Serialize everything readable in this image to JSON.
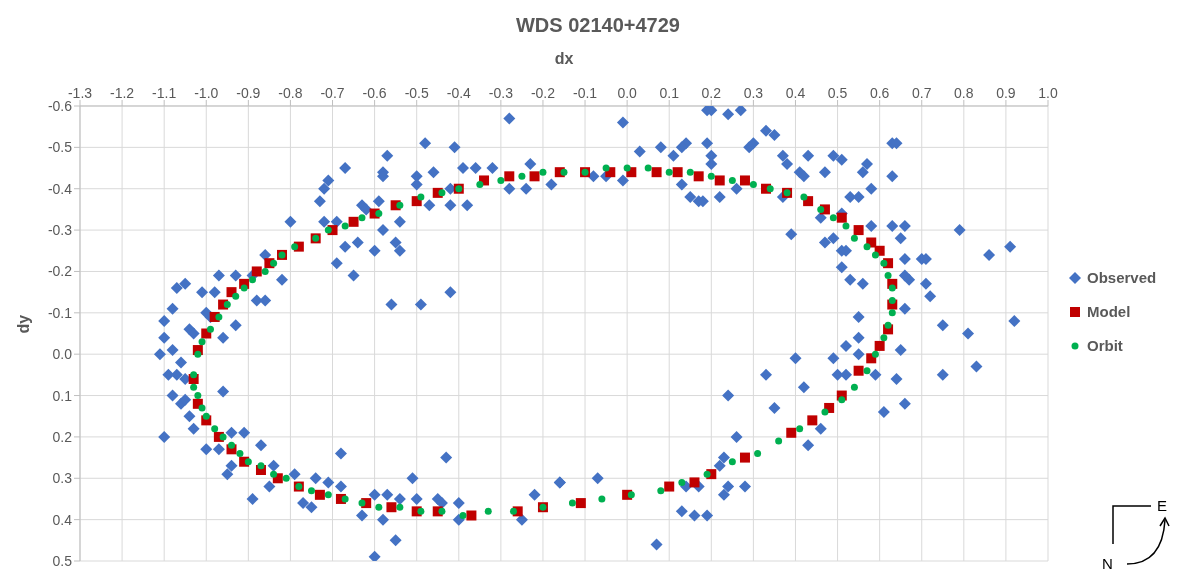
{
  "chart_data": {
    "type": "scatter",
    "title": "WDS 02140+4729",
    "xlabel": "dx",
    "ylabel": "dy",
    "xlim": [
      -1.3,
      1.0
    ],
    "ylim": [
      0.5,
      -0.6
    ],
    "xticks": [
      -1.3,
      -1.2,
      -1.1,
      {
        "value": -1,
        "label": "-1.0"
      },
      -0.9,
      -0.8,
      -0.7,
      -0.6,
      -0.5,
      -0.4,
      -0.3,
      -0.2,
      -0.1,
      {
        "value": 0,
        "label": "0.0"
      },
      0.1,
      0.2,
      0.3,
      0.4,
      0.5,
      0.6,
      0.7,
      0.8,
      0.9,
      {
        "value": 1,
        "label": "1.0"
      }
    ],
    "yticks": [
      -0.6,
      -0.5,
      -0.4,
      -0.3,
      -0.2,
      -0.1,
      {
        "value": 0,
        "label": "0.0"
      },
      0.1,
      0.2,
      0.3,
      0.4,
      0.5
    ],
    "grid": true,
    "legend": "right",
    "annotations": [
      "N",
      "E"
    ],
    "series": [
      {
        "name": "Observed",
        "color": "#4472c4",
        "marker": "diamond",
        "x": [
          -0.28,
          -0.48,
          -0.41,
          -0.57,
          -0.67,
          -0.58,
          -0.58,
          -0.71,
          -0.72,
          -0.73,
          -0.5,
          -0.5,
          -0.46,
          -0.39,
          -0.36,
          -0.32,
          -0.28,
          -0.24,
          -0.18,
          -0.23,
          -0.42,
          -0.42,
          -0.38,
          -0.47,
          -0.63,
          -0.62,
          -0.59,
          -0.54,
          -0.58,
          -0.8,
          -0.72,
          -0.69,
          -0.64,
          -0.67,
          -0.6,
          -0.55,
          -0.54,
          -0.69,
          -0.65,
          -0.86,
          -0.82,
          -0.97,
          -0.93,
          -0.89,
          -1.05,
          -1.07,
          -1.08,
          -1.01,
          -0.98,
          -0.88,
          -0.86,
          -0.56,
          -0.49,
          -0.42,
          -1.1,
          -1.0,
          -0.99,
          -0.93,
          -1.1,
          -1.04,
          -1.03,
          -0.96,
          -1.11,
          -1.08,
          -1.06,
          -1.07,
          -1.09,
          -1.05,
          -1.08,
          -1.06,
          -1.05,
          -0.96,
          -1.04,
          -1.03,
          -1.1,
          -1.0,
          -0.97,
          -0.94,
          -0.91,
          -0.87,
          -0.95,
          -0.94,
          -0.84,
          -0.89,
          -0.85,
          -0.79,
          -0.74,
          -0.77,
          -0.75,
          -0.68,
          -0.71,
          -0.68,
          -0.63,
          -0.6,
          -0.57,
          -0.58,
          -0.6,
          -0.55,
          -0.51,
          -0.54,
          -0.5,
          -0.45,
          -0.44,
          -0.43,
          -0.4,
          -0.4,
          -0.25,
          -0.22,
          -0.16,
          0.19,
          0.2,
          0.24,
          0.27,
          -0.01,
          0.03,
          0.08,
          0.14,
          0.13,
          0.11,
          0.19,
          0.2,
          0.2,
          0.3,
          0.29,
          0.33,
          0.35,
          0.37,
          0.38,
          0.43,
          0.49,
          0.51,
          0.57,
          0.56,
          0.63,
          0.64,
          0.63,
          0.47,
          0.41,
          0.42,
          0.58,
          0.13,
          0.15,
          0.17,
          0.18,
          0.22,
          0.26,
          0.37,
          -0.08,
          -0.05,
          -0.01,
          0.53,
          0.55,
          0.46,
          0.51,
          0.39,
          0.47,
          0.49,
          0.51,
          0.52,
          0.58,
          0.63,
          0.66,
          0.65,
          0.79,
          0.86,
          0.91,
          0.66,
          0.7,
          0.71,
          0.51,
          0.53,
          0.56,
          0.66,
          0.67,
          0.71,
          0.72,
          0.66,
          0.55,
          0.75,
          0.81,
          0.92,
          0.52,
          0.55,
          0.55,
          0.65,
          0.4,
          0.49,
          0.5,
          0.52,
          0.59,
          0.64,
          0.75,
          0.83,
          0.33,
          0.42,
          0.66,
          0.24,
          0.35,
          0.61,
          0.46,
          0.26,
          0.43,
          0.23,
          0.22,
          0.24,
          0.23,
          0.28,
          0.14,
          0.17,
          -0.16,
          -0.07,
          0.13,
          0.16,
          0.19,
          0.07
        ],
        "values": [
          -0.57,
          -0.51,
          -0.5,
          -0.48,
          -0.45,
          -0.44,
          -0.43,
          -0.42,
          -0.4,
          -0.37,
          -0.43,
          -0.41,
          -0.44,
          -0.45,
          -0.45,
          -0.45,
          -0.4,
          -0.4,
          -0.41,
          -0.46,
          -0.4,
          -0.36,
          -0.36,
          -0.36,
          -0.36,
          -0.35,
          -0.37,
          -0.32,
          -0.3,
          -0.32,
          -0.32,
          -0.32,
          -0.27,
          -0.26,
          -0.25,
          -0.27,
          -0.25,
          -0.22,
          -0.19,
          -0.24,
          -0.18,
          -0.19,
          -0.19,
          -0.19,
          -0.17,
          -0.16,
          -0.11,
          -0.15,
          -0.15,
          -0.13,
          -0.13,
          -0.12,
          -0.12,
          -0.15,
          -0.08,
          -0.1,
          -0.09,
          -0.07,
          -0.04,
          -0.06,
          -0.05,
          -0.04,
          0.0,
          -0.01,
          0.02,
          0.05,
          0.05,
          0.06,
          0.1,
          0.12,
          0.11,
          0.09,
          0.15,
          0.18,
          0.2,
          0.23,
          0.23,
          0.19,
          0.19,
          0.22,
          0.29,
          0.27,
          0.27,
          0.35,
          0.32,
          0.29,
          0.3,
          0.36,
          0.37,
          0.24,
          0.31,
          0.32,
          0.39,
          0.34,
          0.34,
          0.4,
          0.49,
          0.45,
          0.3,
          0.35,
          0.35,
          0.35,
          0.36,
          0.25,
          0.36,
          0.4,
          0.4,
          0.34,
          0.31,
          -0.59,
          -0.59,
          -0.58,
          -0.59,
          -0.56,
          -0.49,
          -0.5,
          -0.51,
          -0.5,
          -0.48,
          -0.51,
          -0.48,
          -0.46,
          -0.51,
          -0.5,
          -0.54,
          -0.53,
          -0.48,
          -0.46,
          -0.48,
          -0.48,
          -0.47,
          -0.46,
          -0.44,
          -0.51,
          -0.51,
          -0.43,
          -0.44,
          -0.44,
          -0.43,
          -0.4,
          -0.41,
          -0.38,
          -0.37,
          -0.37,
          -0.38,
          -0.4,
          -0.38,
          -0.43,
          -0.43,
          -0.42,
          -0.38,
          -0.38,
          -0.33,
          -0.34,
          -0.29,
          -0.27,
          -0.28,
          -0.25,
          -0.25,
          -0.31,
          -0.31,
          -0.31,
          -0.28,
          -0.3,
          -0.24,
          -0.26,
          -0.23,
          -0.23,
          -0.23,
          -0.21,
          -0.18,
          -0.17,
          -0.19,
          -0.18,
          -0.17,
          -0.14,
          -0.11,
          -0.09,
          -0.07,
          -0.05,
          -0.08,
          -0.02,
          -0.04,
          0.0,
          -0.01,
          0.01,
          0.01,
          0.05,
          0.05,
          0.05,
          0.06,
          0.05,
          0.03,
          0.05,
          0.08,
          0.12,
          0.1,
          0.13,
          0.14,
          0.18,
          0.2,
          0.22,
          0.25,
          0.27,
          0.32,
          0.34,
          0.32,
          0.32,
          0.32,
          0.31,
          0.3,
          0.38,
          0.39,
          0.39,
          0.46
        ]
      },
      {
        "name": "Model",
        "color": "#c00000",
        "marker": "square",
        "x": [
          -1.03,
          -1.02,
          -1.0,
          -0.98,
          -0.96,
          -0.94,
          -0.91,
          -0.88,
          -0.85,
          -0.82,
          -0.78,
          -0.74,
          -0.7,
          -0.65,
          -0.6,
          -0.55,
          -0.5,
          -0.45,
          -0.4,
          -0.34,
          -0.28,
          -0.22,
          -0.16,
          -0.1,
          -0.04,
          0.01,
          0.07,
          0.12,
          0.17,
          0.22,
          0.28,
          0.33,
          0.38,
          0.43,
          0.47,
          0.51,
          0.55,
          0.58,
          0.6,
          0.62,
          0.63,
          0.63,
          0.62,
          0.6,
          0.58,
          0.55,
          0.51,
          0.48,
          0.44,
          0.39,
          0.28,
          0.2,
          0.16,
          0.1,
          0.0,
          -0.11,
          -0.2,
          -0.26,
          -0.37,
          -0.45,
          -0.5,
          -0.56,
          -0.62,
          -0.68,
          -0.73,
          -0.78,
          -0.83,
          -0.87,
          -0.91,
          -0.94,
          -0.97,
          -1.0,
          -1.02
        ],
        "values": [
          0.06,
          -0.01,
          -0.05,
          -0.09,
          -0.12,
          -0.15,
          -0.17,
          -0.2,
          -0.22,
          -0.24,
          -0.26,
          -0.28,
          -0.3,
          -0.32,
          -0.34,
          -0.36,
          -0.37,
          -0.39,
          -0.4,
          -0.42,
          -0.43,
          -0.43,
          -0.44,
          -0.44,
          -0.44,
          -0.44,
          -0.44,
          -0.44,
          -0.43,
          -0.42,
          -0.42,
          -0.4,
          -0.39,
          -0.37,
          -0.35,
          -0.33,
          -0.3,
          -0.27,
          -0.25,
          -0.22,
          -0.17,
          -0.12,
          -0.06,
          -0.02,
          0.01,
          0.04,
          0.1,
          0.13,
          0.16,
          0.19,
          0.25,
          0.29,
          0.31,
          0.32,
          0.34,
          0.36,
          0.37,
          0.38,
          0.39,
          0.38,
          0.38,
          0.37,
          0.36,
          0.35,
          0.34,
          0.32,
          0.3,
          0.28,
          0.26,
          0.23,
          0.2,
          0.16,
          0.12
        ]
      },
      {
        "name": "Orbit",
        "color": "#00b050",
        "marker": "circle",
        "x": [
          -1.03,
          -1.02,
          -1.01,
          -0.99,
          -0.97,
          -0.95,
          -0.93,
          -0.91,
          -0.89,
          -0.86,
          -0.84,
          -0.82,
          -0.79,
          -0.74,
          -0.71,
          -0.67,
          -0.63,
          -0.59,
          -0.54,
          -0.49,
          -0.44,
          -0.4,
          -0.35,
          -0.3,
          -0.25,
          -0.2,
          -0.15,
          -0.1,
          -0.05,
          0.0,
          0.05,
          0.1,
          0.15,
          0.2,
          0.25,
          0.3,
          0.34,
          0.38,
          0.42,
          0.46,
          0.49,
          0.52,
          0.54,
          0.57,
          0.59,
          0.61,
          0.62,
          0.63,
          0.63,
          0.63,
          0.62,
          0.61,
          0.59,
          0.57,
          0.54,
          0.51,
          0.47,
          0.41,
          0.36,
          0.31,
          0.25,
          0.19,
          0.13,
          0.08,
          0.01,
          -0.06,
          -0.13,
          -0.2,
          -0.27,
          -0.33,
          -0.39,
          -0.44,
          -0.49,
          -0.54,
          -0.59,
          -0.63,
          -0.67,
          -0.71,
          -0.75,
          -0.78,
          -0.81,
          -0.84,
          -0.87,
          -0.9,
          -0.92,
          -0.94,
          -0.96,
          -0.98,
          -1.0,
          -1.01,
          -1.02,
          -1.03
        ],
        "values": [
          0.05,
          0.0,
          -0.03,
          -0.06,
          -0.09,
          -0.12,
          -0.14,
          -0.16,
          -0.18,
          -0.2,
          -0.22,
          -0.24,
          -0.26,
          -0.28,
          -0.3,
          -0.31,
          -0.33,
          -0.34,
          -0.36,
          -0.38,
          -0.39,
          -0.4,
          -0.41,
          -0.42,
          -0.43,
          -0.44,
          -0.44,
          -0.44,
          -0.45,
          -0.45,
          -0.45,
          -0.44,
          -0.44,
          -0.43,
          -0.42,
          -0.41,
          -0.4,
          -0.39,
          -0.38,
          -0.35,
          -0.33,
          -0.31,
          -0.28,
          -0.26,
          -0.24,
          -0.22,
          -0.19,
          -0.16,
          -0.13,
          -0.1,
          -0.07,
          -0.04,
          0.0,
          0.04,
          0.08,
          0.11,
          0.14,
          0.18,
          0.21,
          0.24,
          0.26,
          0.29,
          0.31,
          0.33,
          0.34,
          0.35,
          0.36,
          0.37,
          0.38,
          0.38,
          0.39,
          0.38,
          0.38,
          0.37,
          0.37,
          0.36,
          0.35,
          0.34,
          0.33,
          0.32,
          0.3,
          0.29,
          0.27,
          0.26,
          0.24,
          0.22,
          0.2,
          0.18,
          0.15,
          0.13,
          0.1,
          0.08
        ]
      }
    ]
  }
}
